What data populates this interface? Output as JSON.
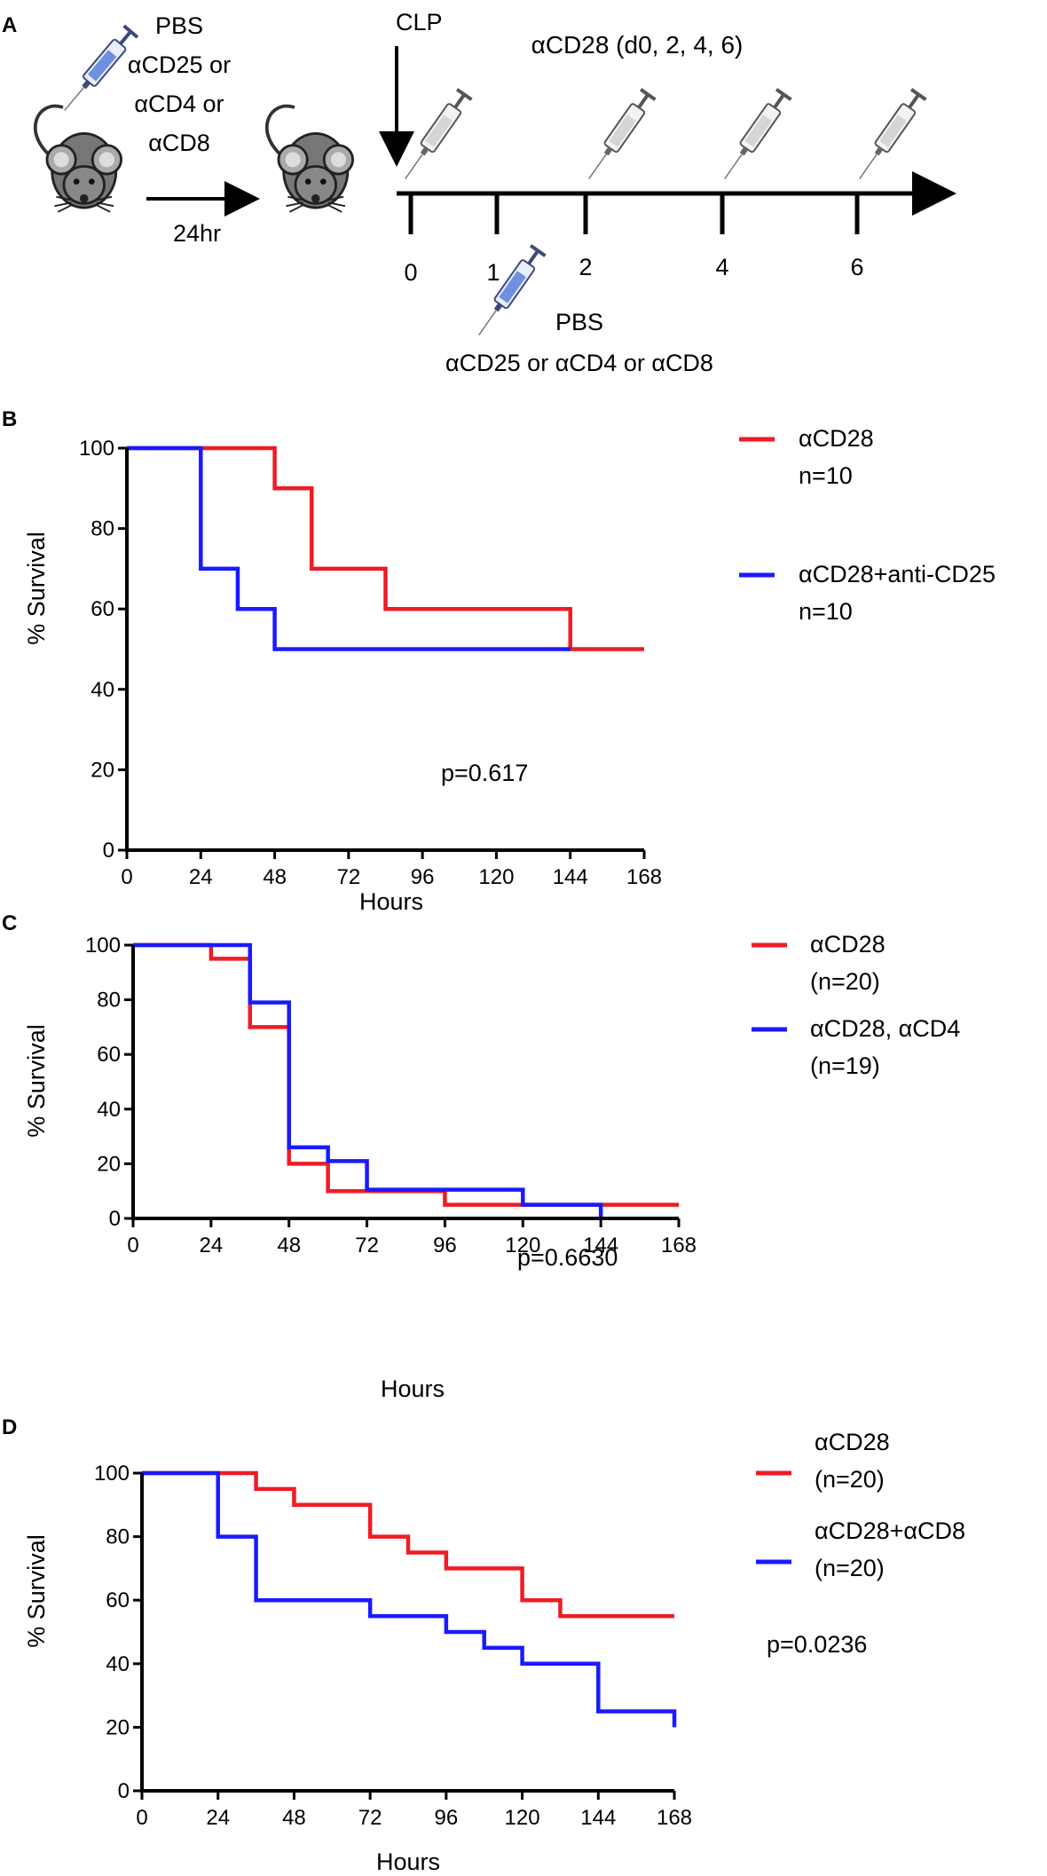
{
  "panel_labels": {
    "a": "A",
    "b": "B",
    "c": "C",
    "d": "D"
  },
  "schematic": {
    "pre_treatment": [
      "PBS",
      "αCD25 or",
      "αCD4 or",
      "αCD8"
    ],
    "interval": "24hr",
    "clp": "CLP",
    "injection_schedule": "αCD28 (d0, 2, 4, 6)",
    "timeline_days": [
      "0",
      "1",
      "2",
      "4",
      "6"
    ],
    "day1_injection": [
      "PBS",
      "αCD25 or αCD4 or αCD8"
    ]
  },
  "colors": {
    "red": "#ee1c25",
    "blue": "#1a1aff",
    "axis": "#000000"
  },
  "chart_data": [
    {
      "type": "line",
      "subtype": "kaplan-meier",
      "panel": "B",
      "xlabel": "Hours",
      "ylabel": "% Survival",
      "xlim": [
        0,
        168
      ],
      "ylim": [
        0,
        100
      ],
      "xticks": [
        0,
        24,
        48,
        72,
        96,
        120,
        144,
        168
      ],
      "yticks": [
        0,
        20,
        40,
        60,
        80,
        100
      ],
      "annotation": "p=0.617",
      "series": [
        {
          "name": "αCD28",
          "n_label": "n=10",
          "color": "#ee1c25",
          "x": [
            0,
            48,
            60,
            84,
            144,
            168
          ],
          "y": [
            100,
            90,
            70,
            60,
            50,
            50
          ]
        },
        {
          "name": "αCD28+anti-CD25",
          "n_label": "n=10",
          "color": "#1a1aff",
          "x": [
            0,
            24,
            36,
            48,
            144
          ],
          "y": [
            100,
            70,
            60,
            50,
            50
          ]
        }
      ]
    },
    {
      "type": "line",
      "subtype": "kaplan-meier",
      "panel": "C",
      "xlabel": "Hours",
      "ylabel": "% Survival",
      "xlim": [
        0,
        168
      ],
      "ylim": [
        0,
        100
      ],
      "xticks": [
        0,
        24,
        48,
        72,
        96,
        120,
        144,
        168
      ],
      "yticks": [
        0,
        20,
        40,
        60,
        80,
        100
      ],
      "annotation": "p=0.6630",
      "series": [
        {
          "name": "αCD28",
          "n_label": "(n=20)",
          "color": "#ee1c25",
          "x": [
            0,
            24,
            36,
            48,
            60,
            96,
            168
          ],
          "y": [
            100,
            95,
            70,
            20,
            10,
            5,
            5
          ]
        },
        {
          "name": "αCD28, αCD4",
          "n_label": "(n=19)",
          "color": "#1a1aff",
          "x": [
            0,
            36,
            48,
            60,
            72,
            120,
            144
          ],
          "y": [
            100,
            79,
            26,
            21,
            10.5,
            5,
            0
          ]
        }
      ]
    },
    {
      "type": "line",
      "subtype": "kaplan-meier",
      "panel": "D",
      "xlabel": "Hours",
      "ylabel": "% Survival",
      "xlim": [
        0,
        168
      ],
      "ylim": [
        0,
        100
      ],
      "xticks": [
        0,
        24,
        48,
        72,
        96,
        120,
        144,
        168
      ],
      "yticks": [
        0,
        20,
        40,
        60,
        80,
        100
      ],
      "annotation": "p=0.0236",
      "series": [
        {
          "name": "αCD28",
          "n_label": "(n=20)",
          "color": "#ee1c25",
          "x": [
            0,
            36,
            48,
            72,
            84,
            96,
            120,
            132,
            168
          ],
          "y": [
            100,
            95,
            90,
            80,
            75,
            70,
            60,
            55,
            55
          ]
        },
        {
          "name": "αCD28+αCD8",
          "n_label": "(n=20)",
          "color": "#1a1aff",
          "x": [
            0,
            24,
            36,
            72,
            96,
            108,
            120,
            144,
            168
          ],
          "y": [
            100,
            80,
            60,
            55,
            50,
            45,
            40,
            25,
            20
          ]
        }
      ]
    }
  ]
}
